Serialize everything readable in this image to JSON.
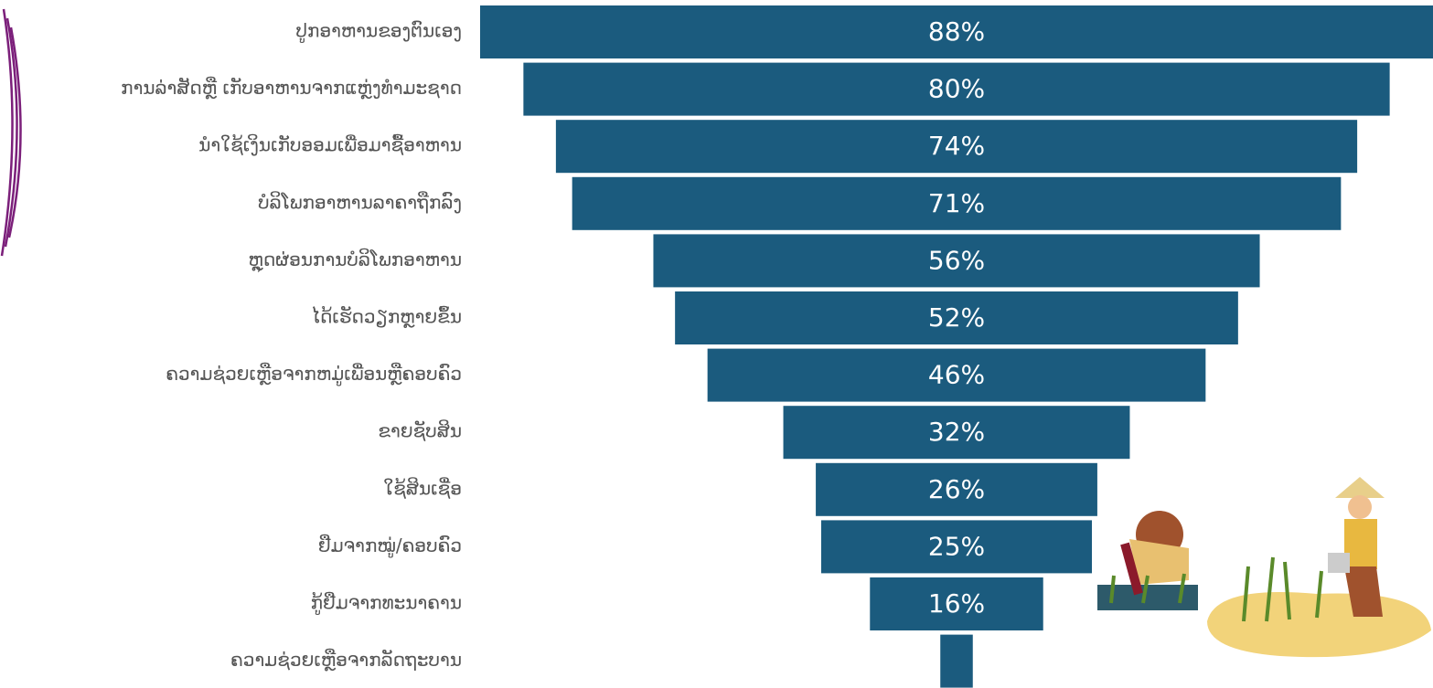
{
  "chart_data": {
    "type": "funnel",
    "categories": [
      "ປູກອາຫານຂອງຕົນເອງ",
      "ການລ່າສັດຫຼື ເກັບອາຫານຈາກແຫຼ່ງທຳມະຊາດ",
      "ນຳໃຊ້ເງິນເກັບອອມເພື່ອມາຊື້ອາຫານ",
      "ບໍລິໂພກອາຫານລາຄາຖືກລົງ",
      "ຫຼຸດຜ່ອນການບໍລິໂພກອາຫານ",
      "ໄດ້ເຮັດວຽກຫຼາຍຂຶ້ນ",
      "ຄວາມຊ່ວຍເຫຼືອຈາກຫມູ່ເພື່ອນຫຼືຄອບຄົວ",
      "ຂາຍຊັບສິນ",
      "ໃຊ້ສິນເຊື່ອ",
      "ຢືມຈາກໝູ່/ຄອບຄົວ",
      "ກູ້ຢືມຈາກທະນາຄານ",
      "ຄວາມຊ່ວຍເຫຼືອຈາກລັດຖະບານ"
    ],
    "values": [
      88,
      80,
      74,
      71,
      56,
      52,
      46,
      32,
      26,
      25,
      16,
      3
    ],
    "value_labels": [
      "88%",
      "80%",
      "74%",
      "71%",
      "56%",
      "52%",
      "46%",
      "32%",
      "26%",
      "25%",
      "16%",
      null
    ],
    "color": "#1b5b7e"
  }
}
